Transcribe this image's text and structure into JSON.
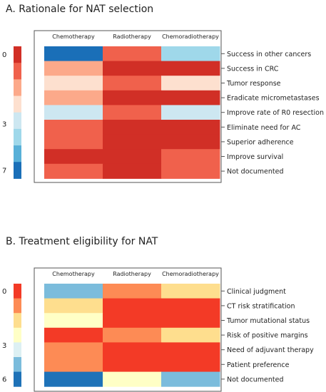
{
  "chart_data": [
    {
      "type": "heatmap",
      "title": "A.  Rationale for NAT selection",
      "columns": [
        "Chemotherapy",
        "Radiotherapy",
        "Chemoradiotherapy"
      ],
      "rows": [
        "Success in other cancers",
        "Success in CRC",
        "Tumor response",
        "Eradicate micrometastases",
        "Improve rate of R0 resection",
        "Eliminate need for AC",
        "Superior adherence",
        "Improve survival",
        "Not documented"
      ],
      "values": [
        [
          7,
          1,
          5
        ],
        [
          2,
          0,
          0
        ],
        [
          3,
          1,
          3
        ],
        [
          2,
          0,
          0
        ],
        [
          4,
          1,
          4
        ],
        [
          1,
          0,
          0
        ],
        [
          1,
          0,
          0
        ],
        [
          0,
          0,
          1
        ],
        [
          1,
          0,
          1
        ]
      ],
      "scale": {
        "min": 0,
        "max": 7,
        "tick_labels": [
          "0",
          "3",
          "7"
        ],
        "colors": [
          "#d12f26",
          "#f0614c",
          "#fca98a",
          "#fde0cf",
          "#cde7f1",
          "#9fd8ea",
          "#58b0d8",
          "#1a6fb8"
        ]
      }
    },
    {
      "type": "heatmap",
      "title": "B.  Treatment eligibility for NAT",
      "columns": [
        "Chemotherapy",
        "Radiotherapy",
        "Chemoradiotherapy"
      ],
      "rows": [
        "Clinical judgment",
        "CT risk stratification",
        "Tumor mutational status",
        "Risk of positive margins",
        "Need of adjuvant therapy",
        "Patient preference",
        "Not documented"
      ],
      "values": [
        [
          5,
          1,
          2
        ],
        [
          2,
          0,
          0
        ],
        [
          3,
          0,
          0
        ],
        [
          0,
          1,
          2
        ],
        [
          1,
          0,
          0
        ],
        [
          1,
          0,
          0
        ],
        [
          6,
          3,
          5
        ]
      ],
      "scale": {
        "min": 0,
        "max": 6,
        "tick_labels": [
          "0",
          "3",
          "6"
        ],
        "colors": [
          "#f33a26",
          "#fd8b55",
          "#fede8e",
          "#ffffc6",
          "#ddf0f3",
          "#7bbcdc",
          "#1e72b8"
        ]
      }
    }
  ]
}
